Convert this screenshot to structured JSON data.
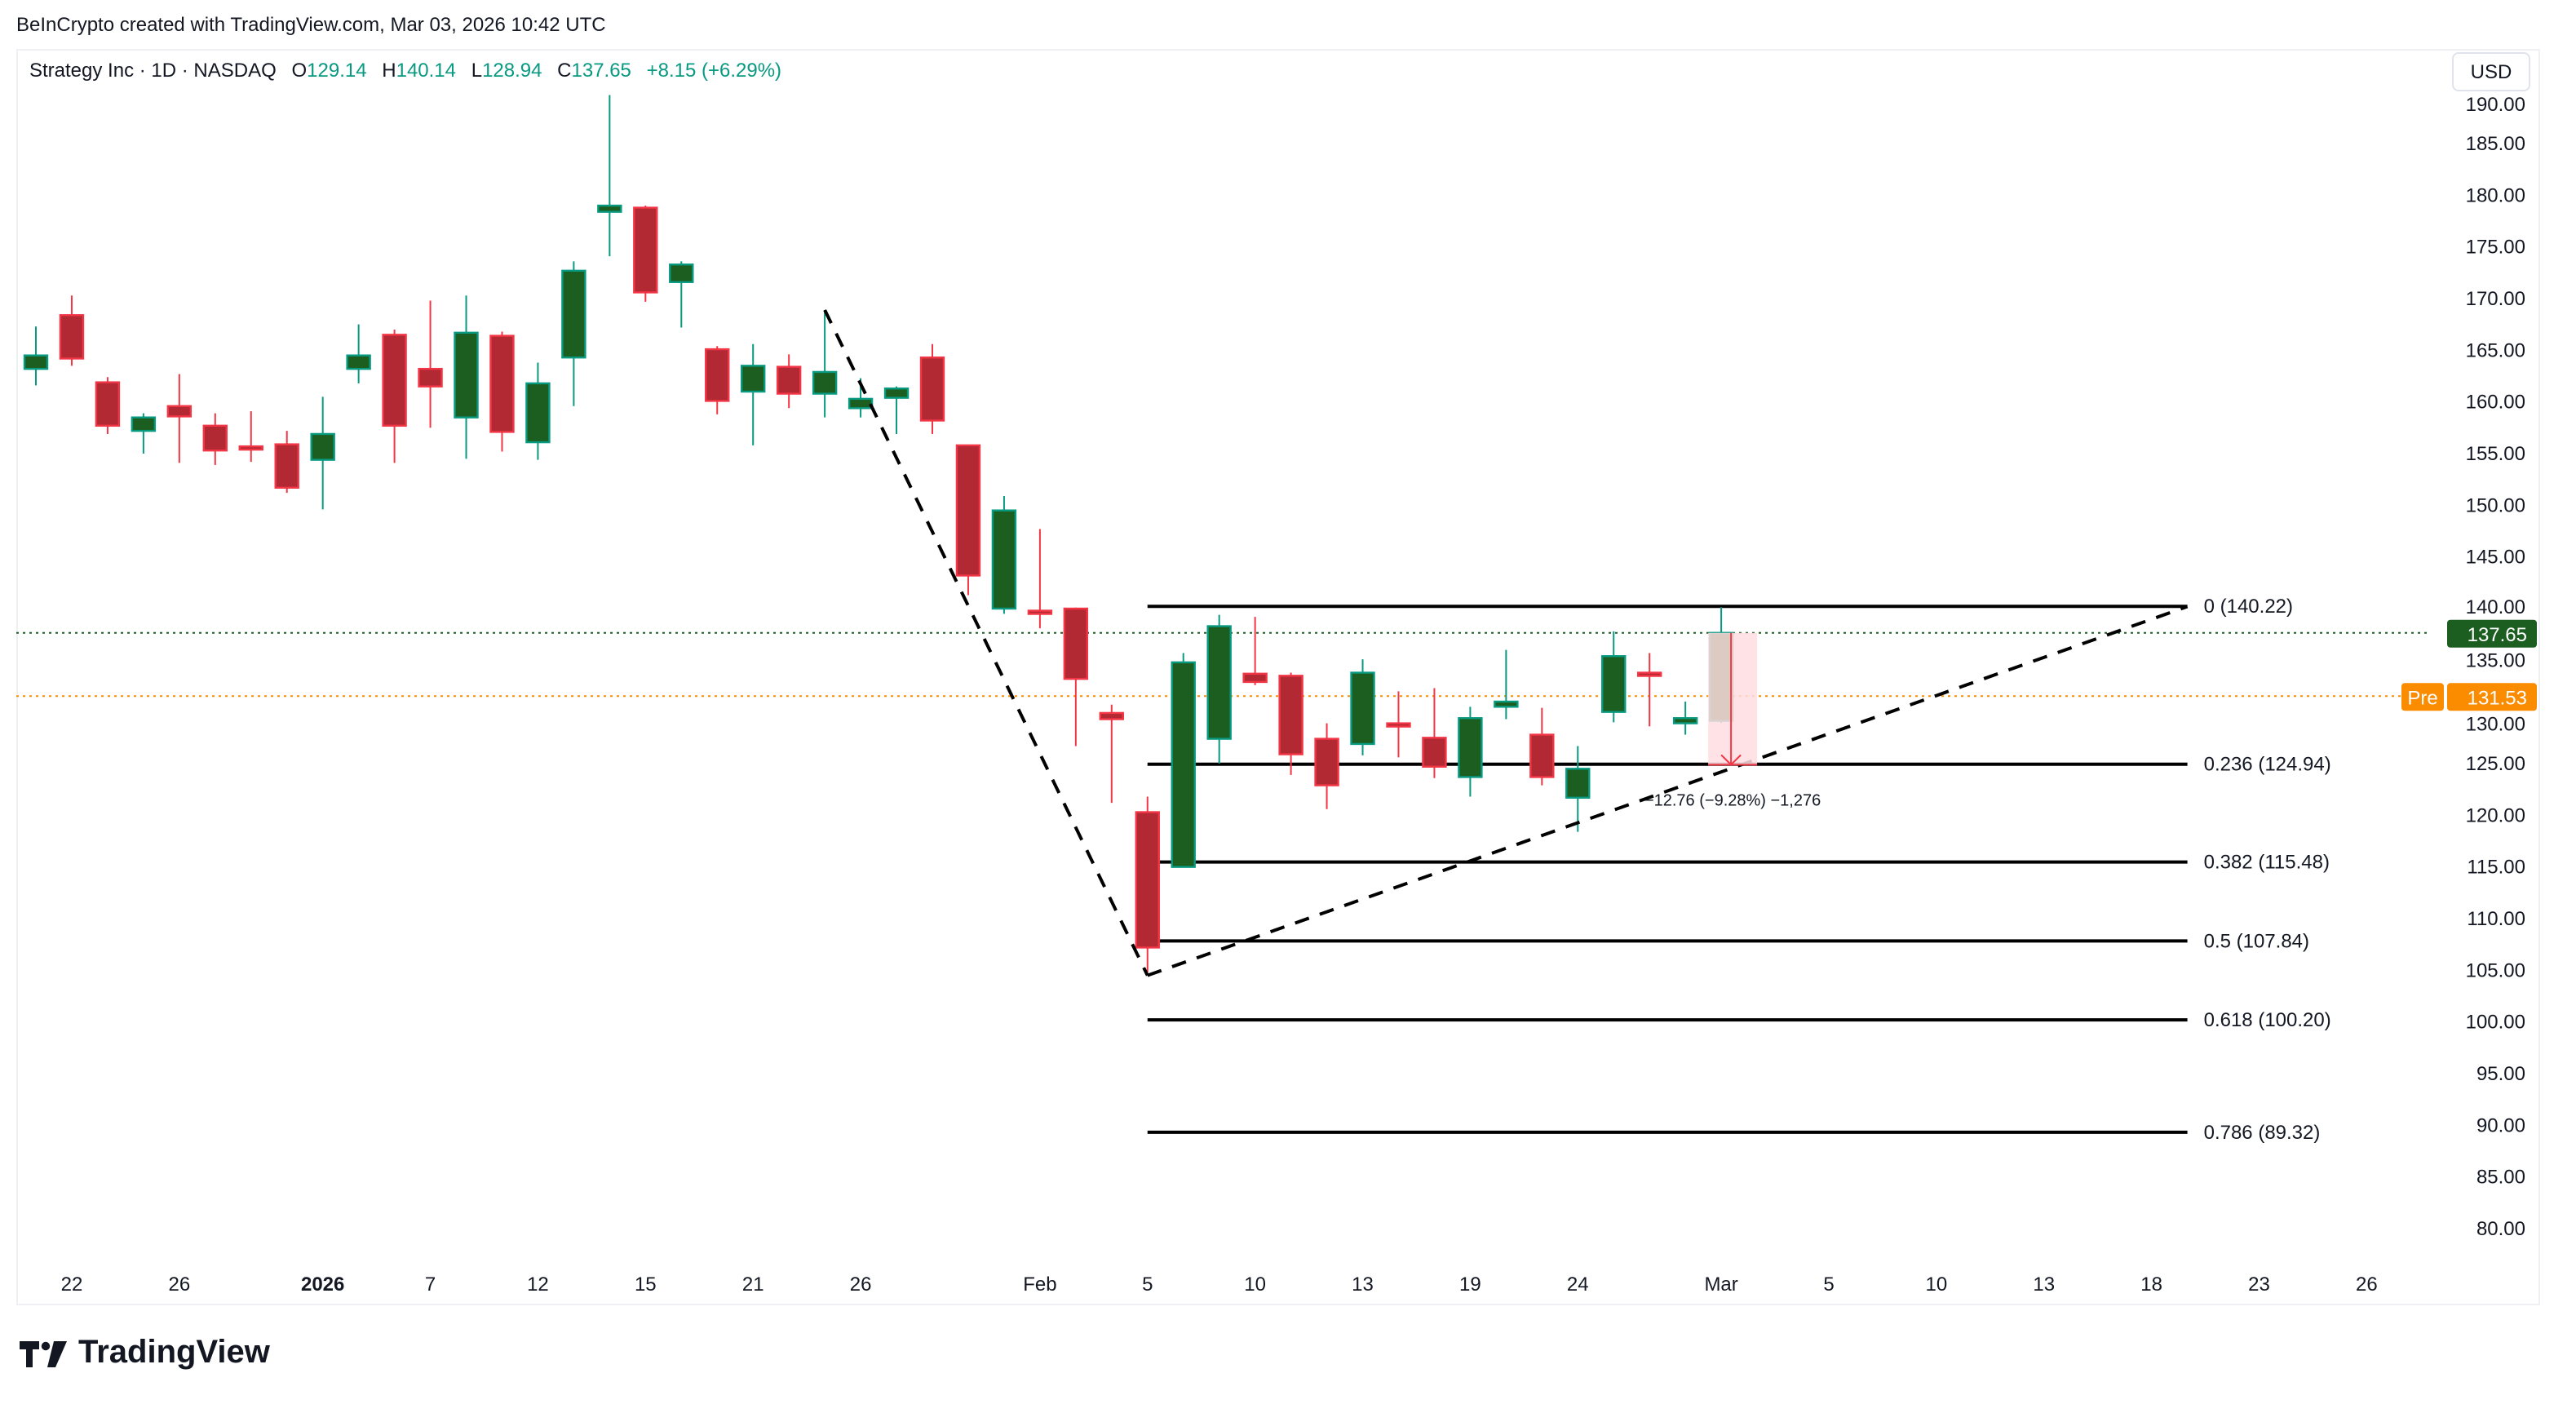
{
  "credit": "BeInCrypto created with TradingView.com, Mar 03, 2026 10:42 UTC",
  "legend": {
    "symbol": "Strategy Inc · 1D · NASDAQ",
    "o_label": "O",
    "o": "129.14",
    "h_label": "H",
    "h": "140.14",
    "l_label": "L",
    "l": "128.94",
    "c_label": "C",
    "c": "137.65",
    "change": "+8.15 (+6.29%)"
  },
  "currency_button": "USD",
  "logo_text": "TradingView",
  "colors": {
    "up_body": "#1b5e20",
    "up_border": "#089981",
    "down_body": "#b22833",
    "down_border": "#f23645",
    "last_price": "#1b5e20",
    "premarket": "#fb8c00",
    "measure": "#f23645",
    "measure_fill": "#ffdde0"
  },
  "chart_data": {
    "type": "candlestick",
    "ylim": [
      78,
      191
    ],
    "y_ticks": [
      "80.00",
      "85.00",
      "90.00",
      "95.00",
      "100.00",
      "105.00",
      "110.00",
      "115.00",
      "120.00",
      "125.00",
      "130.00",
      "135.00",
      "140.00",
      "145.00",
      "150.00",
      "155.00",
      "160.00",
      "165.00",
      "170.00",
      "175.00",
      "180.00",
      "185.00",
      "190.00"
    ],
    "x_ticks": [
      {
        "date": "2025-12-22",
        "label": "22"
      },
      {
        "date": "2025-12-26",
        "label": "26"
      },
      {
        "date": "2026-01-02",
        "label": "2026",
        "bold": true
      },
      {
        "date": "2026-01-07",
        "label": "7"
      },
      {
        "date": "2026-01-12",
        "label": "12"
      },
      {
        "date": "2026-01-15",
        "label": "15"
      },
      {
        "date": "2026-01-21",
        "label": "21"
      },
      {
        "date": "2026-01-26",
        "label": "26"
      },
      {
        "date": "2026-02-02",
        "label": "Feb"
      },
      {
        "date": "2026-02-05",
        "label": "5"
      },
      {
        "date": "2026-02-10",
        "label": "10"
      },
      {
        "date": "2026-02-13",
        "label": "13"
      },
      {
        "date": "2026-02-19",
        "label": "19"
      },
      {
        "date": "2026-02-24",
        "label": "24"
      },
      {
        "date": "2026-03-02",
        "label": "Mar"
      },
      {
        "date": "2026-03-05",
        "label": "5"
      },
      {
        "date": "2026-03-10",
        "label": "10"
      },
      {
        "date": "2026-03-13",
        "label": "13"
      },
      {
        "date": "2026-03-18",
        "label": "18"
      },
      {
        "date": "2026-03-23",
        "label": "23"
      },
      {
        "date": "2026-03-26",
        "label": "26"
      }
    ],
    "candles_columns": [
      "date",
      "open",
      "high",
      "low",
      "close"
    ],
    "candles": [
      [
        "2025-12-19",
        163.2,
        167.3,
        161.6,
        164.5
      ],
      [
        "2025-12-22",
        168.4,
        170.3,
        163.5,
        164.2
      ],
      [
        "2025-12-23",
        161.9,
        162.4,
        156.9,
        157.7
      ],
      [
        "2025-12-24",
        157.2,
        158.9,
        155.0,
        158.5
      ],
      [
        "2025-12-26",
        159.6,
        162.7,
        154.1,
        158.6
      ],
      [
        "2025-12-29",
        157.7,
        158.9,
        153.9,
        155.3
      ],
      [
        "2025-12-30",
        155.7,
        159.1,
        154.2,
        155.5
      ],
      [
        "2025-12-31",
        155.9,
        157.2,
        151.2,
        151.7
      ],
      [
        "2026-01-02",
        154.4,
        160.5,
        149.6,
        156.9
      ],
      [
        "2026-01-05",
        163.2,
        167.5,
        161.8,
        164.5
      ],
      [
        "2026-01-06",
        166.5,
        167.0,
        154.1,
        157.7
      ],
      [
        "2026-01-07",
        163.2,
        169.8,
        157.5,
        161.5
      ],
      [
        "2026-01-08",
        158.5,
        170.3,
        154.5,
        166.7
      ],
      [
        "2026-01-09",
        166.4,
        166.8,
        155.2,
        157.1
      ],
      [
        "2026-01-12",
        156.1,
        163.8,
        154.4,
        161.8
      ],
      [
        "2026-01-13",
        164.3,
        173.6,
        159.6,
        172.7
      ],
      [
        "2026-01-14",
        178.4,
        189.7,
        174.1,
        179.0
      ],
      [
        "2026-01-15",
        178.8,
        179.0,
        169.7,
        170.6
      ],
      [
        "2026-01-16",
        171.6,
        173.6,
        167.2,
        173.3
      ],
      [
        "2026-01-20",
        165.1,
        165.4,
        158.8,
        160.1
      ],
      [
        "2026-01-21",
        161.0,
        165.6,
        155.8,
        163.5
      ],
      [
        "2026-01-22",
        163.4,
        164.6,
        159.4,
        160.8
      ],
      [
        "2026-01-23",
        160.8,
        168.9,
        158.5,
        162.9
      ],
      [
        "2026-01-26",
        159.4,
        162.3,
        158.5,
        160.3
      ],
      [
        "2026-01-27",
        160.4,
        161.5,
        156.9,
        161.3
      ],
      [
        "2026-01-28",
        164.3,
        165.6,
        156.9,
        158.2
      ],
      [
        "2026-01-29",
        155.8,
        155.8,
        141.3,
        143.2
      ],
      [
        "2026-01-30",
        140.0,
        150.9,
        139.5,
        149.5
      ],
      [
        "2026-02-02",
        139.8,
        147.7,
        138.1,
        139.5
      ],
      [
        "2026-02-03",
        140.0,
        140.1,
        126.7,
        133.2
      ],
      [
        "2026-02-04",
        129.9,
        130.7,
        121.2,
        129.3
      ],
      [
        "2026-02-05",
        120.3,
        121.8,
        104.8,
        107.2
      ],
      [
        "2026-02-06",
        115.0,
        135.7,
        115.0,
        134.8
      ],
      [
        "2026-02-09",
        127.4,
        139.4,
        125.0,
        138.3
      ],
      [
        "2026-02-10",
        133.7,
        139.2,
        132.6,
        132.9
      ],
      [
        "2026-02-11",
        133.5,
        133.8,
        123.9,
        125.9
      ],
      [
        "2026-02-12",
        127.4,
        128.9,
        120.6,
        122.9
      ],
      [
        "2026-02-13",
        126.9,
        135.1,
        125.8,
        133.8
      ],
      [
        "2026-02-17",
        128.9,
        132.0,
        125.6,
        128.6
      ],
      [
        "2026-02-18",
        127.5,
        132.3,
        123.6,
        124.7
      ],
      [
        "2026-02-19",
        123.7,
        130.5,
        121.8,
        129.4
      ],
      [
        "2026-02-20",
        130.5,
        136.0,
        129.3,
        131.0
      ],
      [
        "2026-02-23",
        127.8,
        130.4,
        122.9,
        123.7
      ],
      [
        "2026-02-24",
        121.7,
        126.7,
        118.4,
        124.5
      ],
      [
        "2026-02-25",
        130.0,
        137.8,
        129.0,
        135.4
      ],
      [
        "2026-02-26",
        133.8,
        135.7,
        128.6,
        133.6
      ],
      [
        "2026-02-27",
        128.9,
        131.0,
        127.8,
        129.4
      ],
      [
        "2026-03-02",
        129.14,
        140.14,
        128.94,
        137.65
      ]
    ],
    "last_price": {
      "value": 137.65,
      "label": "137.65"
    },
    "premarket": {
      "value": 131.53,
      "label": "131.53",
      "tag": "Pre"
    },
    "fib_retracement": {
      "start_date": "2026-02-05",
      "end_date": "2026-03-19",
      "levels": [
        {
          "ratio": 0,
          "price": 140.22,
          "label": "0 (140.22)"
        },
        {
          "ratio": 0.236,
          "price": 124.94,
          "label": "0.236 (124.94)"
        },
        {
          "ratio": 0.382,
          "price": 115.48,
          "label": "0.382 (115.48)"
        },
        {
          "ratio": 0.5,
          "price": 107.84,
          "label": "0.5 (107.84)"
        },
        {
          "ratio": 0.618,
          "price": 100.2,
          "label": "0.618 (100.20)"
        },
        {
          "ratio": 0.786,
          "price": 89.32,
          "label": "0.786 (89.32)"
        }
      ]
    },
    "trend_lines": [
      {
        "from": {
          "date": "2026-01-23",
          "price": 168.9
        },
        "to": {
          "date": "2026-02-05",
          "price": 104.5
        },
        "style": "dashed"
      },
      {
        "from": {
          "date": "2026-02-05",
          "price": 104.5
        },
        "to": {
          "date": "2026-03-19",
          "price": 140.2
        },
        "style": "dashed"
      }
    ],
    "measure": {
      "from_date": "2026-03-02",
      "to_date": "2026-03-03",
      "from_price": 137.65,
      "to_price": 124.89,
      "label": "−12.76 (−9.28%) −1,276"
    }
  }
}
